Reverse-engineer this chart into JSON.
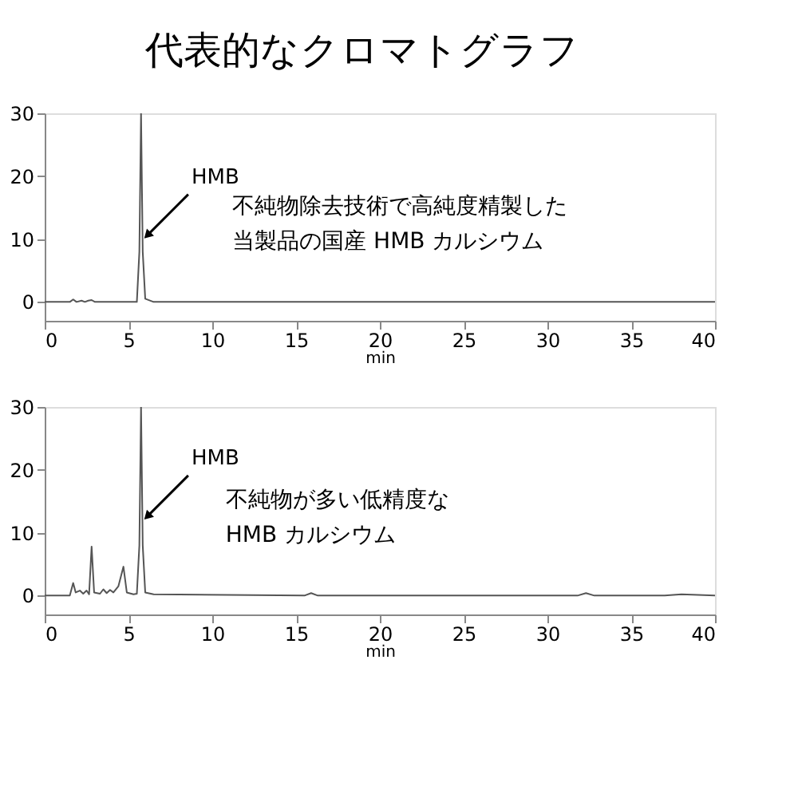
{
  "chart_data": [
    {
      "type": "line",
      "title": "代表的なクロマトグラフ",
      "xlabel": "min",
      "x": [
        0,
        1.5,
        1.7,
        1.9,
        2.2,
        2.4,
        2.6,
        2.8,
        3.0,
        3.5,
        5.5,
        5.65,
        5.75,
        5.85,
        6.0,
        6.5,
        20,
        40
      ],
      "series": [
        {
          "color": "#555555",
          "values": [
            0,
            0,
            0.4,
            0,
            0.2,
            0,
            0.2,
            0.3,
            0,
            0,
            0,
            8,
            30,
            8,
            0.5,
            0,
            0,
            0
          ]
        }
      ],
      "xlim": [
        0,
        40
      ],
      "xticks": [
        0,
        5,
        10,
        15,
        20,
        25,
        30,
        35,
        40
      ],
      "ylim": [
        -3,
        30
      ],
      "yticks": [
        0,
        10,
        20,
        30
      ],
      "grid": false,
      "line_style": "solid",
      "annotations": [
        {
          "text": "HMB",
          "x": 5.9,
          "y": 10
        },
        "不純物除去技術で高純度精製した",
        "当製品の国産 HMB カルシウム"
      ]
    },
    {
      "type": "line",
      "xlabel": "min",
      "x": [
        0,
        1.5,
        1.7,
        1.85,
        2.1,
        2.3,
        2.5,
        2.65,
        2.8,
        2.95,
        3.3,
        3.5,
        3.7,
        3.9,
        4.1,
        4.4,
        4.7,
        4.9,
        5.3,
        5.5,
        5.65,
        5.75,
        5.85,
        6.0,
        6.5,
        15.5,
        15.9,
        16.3,
        31.8,
        32.3,
        32.8,
        37,
        38,
        40
      ],
      "series": [
        {
          "color": "#555555",
          "values": [
            0,
            0,
            2,
            0.5,
            0.8,
            0.3,
            0.8,
            0.2,
            7.8,
            0.5,
            0.3,
            1,
            0.4,
            0.9,
            0.5,
            1.5,
            4.6,
            0.5,
            0.2,
            0.3,
            8,
            30,
            8,
            0.5,
            0.2,
            0,
            0.4,
            0,
            0,
            0.4,
            0,
            0,
            0.2,
            0
          ]
        }
      ],
      "xlim": [
        0,
        40
      ],
      "xticks": [
        0,
        5,
        10,
        15,
        20,
        25,
        30,
        35,
        40
      ],
      "ylim": [
        -3,
        30
      ],
      "yticks": [
        0,
        10,
        20,
        30
      ],
      "grid": false,
      "line_style": "solid",
      "annotations": [
        {
          "text": "HMB",
          "x": 5.9,
          "y": 12
        },
        "不純物が多い低精度な",
        "HMB カルシウム"
      ]
    }
  ]
}
